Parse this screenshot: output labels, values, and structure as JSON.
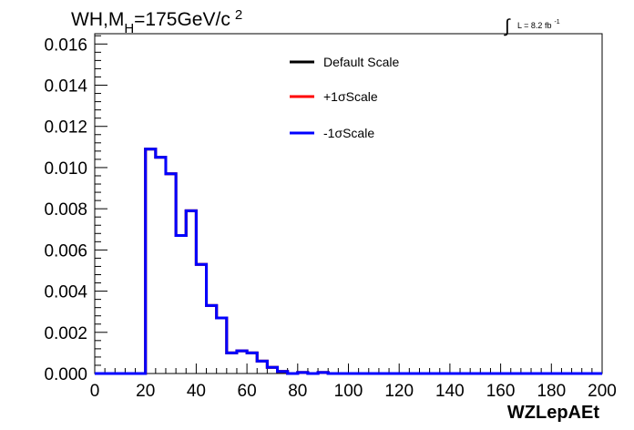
{
  "chart_data": {
    "type": "line",
    "title_main": "WH,M",
    "title_sub": "H",
    "title_rest": "=175GeV/c",
    "title_sup": "2",
    "lumi_label": "L = 8.2 fb",
    "lumi_sup": "-1",
    "xlabel": "WZLepAEt",
    "ylabel": "",
    "xlim": [
      0,
      200
    ],
    "ylim": [
      0,
      0.0165
    ],
    "x_ticks": [
      "0",
      "20",
      "40",
      "60",
      "80",
      "100",
      "120",
      "140",
      "160",
      "180",
      "200"
    ],
    "y_ticks": [
      "0.000",
      "0.002",
      "0.004",
      "0.006",
      "0.008",
      "0.010",
      "0.012",
      "0.014",
      "0.016"
    ],
    "grid": false,
    "legend_position": "top-center",
    "bin_edges": [
      0,
      4,
      8,
      12,
      16,
      20,
      24,
      28,
      32,
      36,
      40,
      44,
      48,
      52,
      56,
      60,
      64,
      68,
      72,
      76,
      80,
      84,
      88,
      92,
      96,
      100,
      104,
      108,
      112,
      116,
      120,
      124,
      128,
      132,
      136,
      140,
      144,
      148,
      152,
      156,
      160,
      164,
      168,
      172,
      176,
      180,
      184,
      188,
      192,
      196,
      200
    ],
    "series": [
      {
        "name": "Default Scale",
        "color": "#000000",
        "values": [
          0,
          0,
          0,
          0,
          0,
          0.0109,
          0.0105,
          0.0097,
          0.0067,
          0.0079,
          0.0053,
          0.0033,
          0.0027,
          0.001,
          0.0011,
          0.001,
          0.0006,
          0.0003,
          0.0001,
          0,
          5e-05,
          0,
          5e-05,
          0,
          0,
          0,
          0,
          0,
          0,
          0,
          0,
          0,
          0,
          0,
          0,
          0,
          0,
          0,
          0,
          0,
          0,
          0,
          0,
          0,
          0,
          0,
          0,
          0,
          0,
          0
        ]
      },
      {
        "name": "+1σScale",
        "color": "#ff0000",
        "values": [
          0,
          0,
          0,
          0,
          0,
          0.0109,
          0.0105,
          0.0097,
          0.0067,
          0.0079,
          0.0053,
          0.0033,
          0.0027,
          0.001,
          0.0011,
          0.001,
          0.0006,
          0.0003,
          0.0001,
          0,
          5e-05,
          0,
          5e-05,
          0,
          0,
          0,
          0,
          0,
          0,
          0,
          0,
          0,
          0,
          0,
          0,
          0,
          0,
          0,
          0,
          0,
          0,
          0,
          0,
          0,
          0,
          0,
          0,
          0,
          0,
          0
        ]
      },
      {
        "name": "-1σScale",
        "color": "#0000ff",
        "values": [
          0,
          0,
          0,
          0,
          0,
          0.0109,
          0.0105,
          0.0097,
          0.0067,
          0.0079,
          0.0053,
          0.0033,
          0.0027,
          0.001,
          0.0011,
          0.001,
          0.0006,
          0.0003,
          0.0001,
          0,
          5e-05,
          0,
          5e-05,
          0,
          0,
          0,
          0,
          0,
          0,
          0,
          0,
          0,
          0,
          0,
          0,
          0,
          0,
          0,
          0,
          0,
          0,
          0,
          0,
          0,
          0,
          0,
          0,
          0,
          0,
          0
        ]
      }
    ]
  }
}
